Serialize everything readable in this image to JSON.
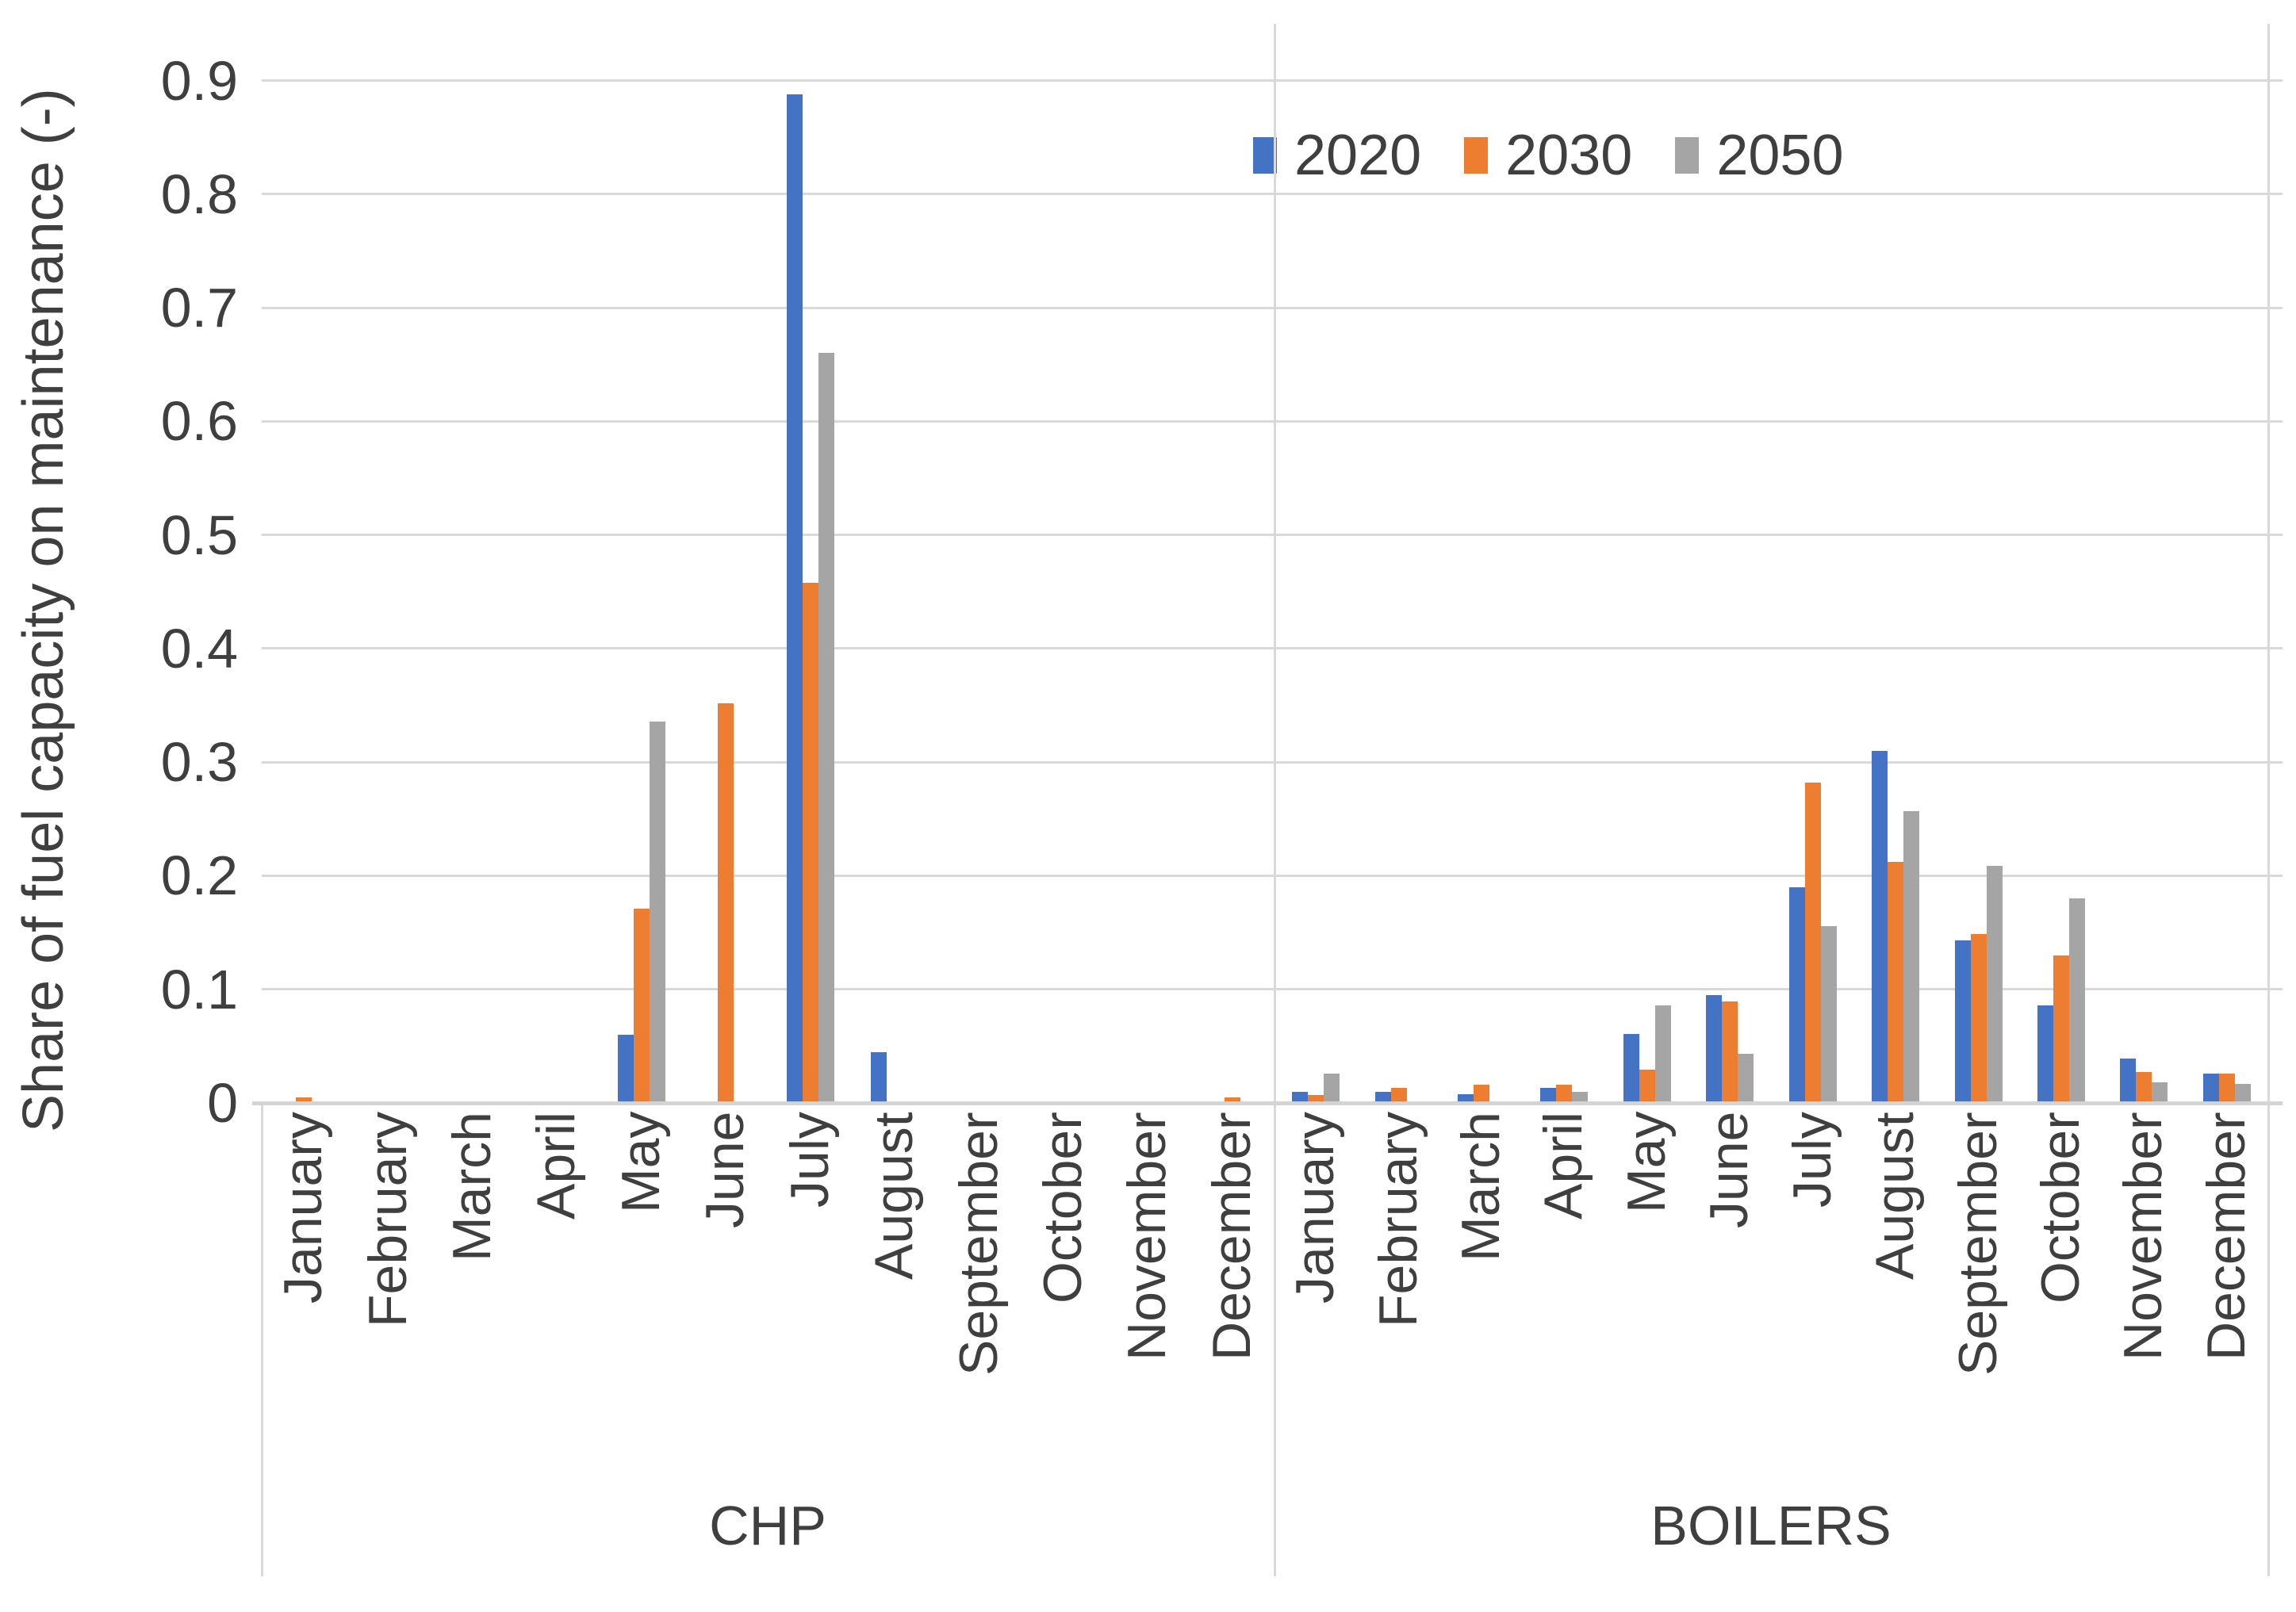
{
  "chart_data": {
    "type": "bar",
    "title": "",
    "y_axis_title": "Share of fuel capacity on maintenance (-)",
    "ylabel": "Share of fuel capacity on maintenance (-)",
    "xlabel": "",
    "ylim": [
      0,
      0.95
    ],
    "y_ticks": [
      0,
      0.1,
      0.2,
      0.3,
      0.4,
      0.5,
      0.6,
      0.7,
      0.8,
      0.9
    ],
    "grid": true,
    "legend_position": "top-right",
    "groups": [
      "CHP",
      "BOILERS"
    ],
    "categories": [
      "January",
      "February",
      "March",
      "April",
      "May",
      "June",
      "July",
      "August",
      "September",
      "October",
      "November",
      "December"
    ],
    "series": [
      {
        "name": "2020",
        "color": "#4472C4",
        "CHP": [
          0,
          0,
          0,
          0,
          0.06,
          0,
          0.888,
          0.045,
          0,
          0,
          0,
          0
        ],
        "BOILERS": [
          0.01,
          0.01,
          0.008,
          0.013,
          0.061,
          0.095,
          0.19,
          0.31,
          0.143,
          0.086,
          0.039,
          0.026
        ]
      },
      {
        "name": "2030",
        "color": "#ED7D31",
        "CHP": [
          0.005,
          0,
          0,
          0,
          0.171,
          0.352,
          0.458,
          0,
          0,
          0,
          0,
          0.005
        ],
        "BOILERS": [
          0.007,
          0.013,
          0.016,
          0.016,
          0.029,
          0.089,
          0.282,
          0.212,
          0.149,
          0.13,
          0.027,
          0.026
        ]
      },
      {
        "name": "2050",
        "color": "#A5A5A5",
        "CHP": [
          0,
          0,
          0,
          0,
          0.336,
          0,
          0.66,
          0,
          0,
          0,
          0,
          0
        ],
        "BOILERS": [
          0.026,
          0,
          0,
          0.01,
          0.086,
          0.043,
          0.156,
          0.257,
          0.209,
          0.18,
          0.018,
          0.017
        ]
      }
    ]
  },
  "labels": {
    "group_left": "CHP",
    "group_right": "BOILERS"
  },
  "colors": {
    "gridline": "#d9d9d9",
    "axis_text": "#3f3f3f",
    "series_2020": "#4472C4",
    "series_2030": "#ED7D31",
    "series_2050": "#A5A5A5"
  }
}
